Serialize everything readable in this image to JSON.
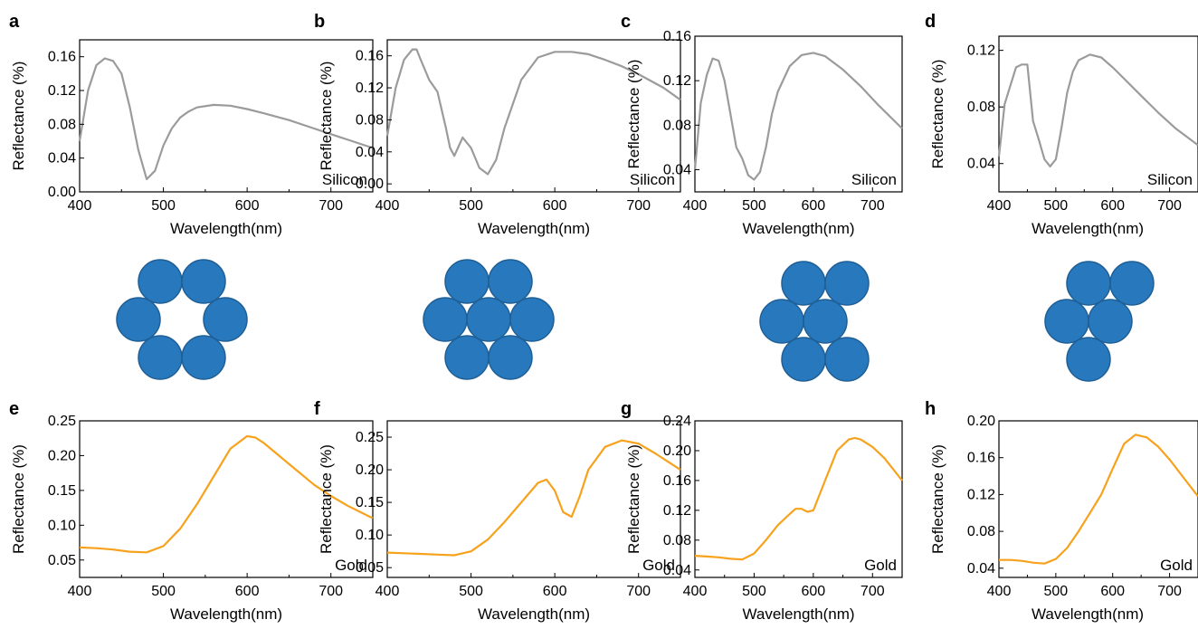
{
  "chart_data": [
    {
      "panel": "a",
      "type": "line",
      "xlabel": "Wavelength(nm)",
      "ylabel": "Reflectance (%)",
      "xlim": [
        400,
        750
      ],
      "ylim": [
        0,
        0.18
      ],
      "yticks": [
        0,
        0.04,
        0.08,
        0.12,
        0.16
      ],
      "ytick_labels": [
        "0.00",
        "0.04",
        "0.08",
        "0.12",
        "0.16"
      ],
      "xticks": [
        400,
        500,
        600,
        700
      ],
      "annotation": "Silicon",
      "color": "#9b9b9b",
      "x": [
        400,
        410,
        420,
        430,
        440,
        450,
        460,
        470,
        480,
        490,
        500,
        510,
        520,
        530,
        540,
        560,
        580,
        600,
        620,
        650,
        680,
        710,
        750
      ],
      "y": [
        0.06,
        0.12,
        0.15,
        0.158,
        0.155,
        0.14,
        0.1,
        0.05,
        0.015,
        0.025,
        0.055,
        0.075,
        0.088,
        0.095,
        0.1,
        0.103,
        0.102,
        0.098,
        0.093,
        0.085,
        0.075,
        0.065,
        0.052
      ]
    },
    {
      "panel": "b",
      "type": "line",
      "xlabel": "Wavelength(nm)",
      "ylabel": "Reflectance (%)",
      "xlim": [
        400,
        750
      ],
      "ylim": [
        -0.01,
        0.18
      ],
      "yticks": [
        0,
        0.04,
        0.08,
        0.12,
        0.16
      ],
      "ytick_labels": [
        "0.00",
        "0.04",
        "0.08",
        "0.12",
        "0.16"
      ],
      "xticks": [
        400,
        500,
        600,
        700
      ],
      "annotation": "Silicon",
      "color": "#9b9b9b",
      "x": [
        400,
        410,
        420,
        430,
        435,
        440,
        450,
        460,
        470,
        475,
        480,
        490,
        500,
        510,
        520,
        530,
        540,
        560,
        580,
        600,
        620,
        640,
        660,
        680,
        700,
        730,
        750
      ],
      "y": [
        0.06,
        0.12,
        0.155,
        0.168,
        0.168,
        0.155,
        0.13,
        0.115,
        0.07,
        0.045,
        0.035,
        0.058,
        0.045,
        0.02,
        0.012,
        0.03,
        0.07,
        0.13,
        0.158,
        0.165,
        0.165,
        0.162,
        0.155,
        0.147,
        0.137,
        0.12,
        0.105
      ]
    },
    {
      "panel": "c",
      "type": "line",
      "xlabel": "Wavelength(nm)",
      "ylabel": "Reflectance (%)",
      "xlim": [
        400,
        750
      ],
      "ylim": [
        0.02,
        0.16
      ],
      "yticks": [
        0.04,
        0.08,
        0.12,
        0.16
      ],
      "ytick_labels": [
        "0.04",
        "0.08",
        "0.12",
        "0.16"
      ],
      "xticks": [
        400,
        500,
        600,
        700
      ],
      "annotation": "Silicon",
      "color": "#9b9b9b",
      "x": [
        400,
        410,
        420,
        430,
        440,
        450,
        460,
        470,
        480,
        490,
        500,
        510,
        520,
        530,
        540,
        560,
        580,
        600,
        620,
        650,
        680,
        710,
        750
      ],
      "y": [
        0.04,
        0.1,
        0.125,
        0.14,
        0.138,
        0.12,
        0.09,
        0.06,
        0.05,
        0.035,
        0.031,
        0.038,
        0.06,
        0.09,
        0.11,
        0.133,
        0.143,
        0.145,
        0.142,
        0.13,
        0.115,
        0.098,
        0.077
      ]
    },
    {
      "panel": "d",
      "type": "line",
      "xlabel": "Wavelength(nm)",
      "ylabel": "Reflectance (%)",
      "xlim": [
        400,
        750
      ],
      "ylim": [
        0.02,
        0.13
      ],
      "yticks": [
        0.04,
        0.08,
        0.12
      ],
      "ytick_labels": [
        "0.04",
        "0.08",
        "0.12"
      ],
      "xticks": [
        400,
        500,
        600,
        700
      ],
      "annotation": "Silicon",
      "color": "#9b9b9b",
      "x": [
        400,
        410,
        420,
        430,
        440,
        450,
        460,
        470,
        480,
        490,
        500,
        510,
        520,
        530,
        540,
        560,
        580,
        600,
        620,
        650,
        680,
        710,
        750
      ],
      "y": [
        0.045,
        0.082,
        0.095,
        0.108,
        0.11,
        0.11,
        0.07,
        0.057,
        0.043,
        0.038,
        0.043,
        0.065,
        0.09,
        0.105,
        0.113,
        0.117,
        0.115,
        0.108,
        0.1,
        0.088,
        0.076,
        0.065,
        0.053
      ]
    },
    {
      "panel": "e",
      "type": "line",
      "xlabel": "Wavelength(nm)",
      "ylabel": "Reflectance (%)",
      "xlim": [
        400,
        750
      ],
      "ylim": [
        0.025,
        0.25
      ],
      "yticks": [
        0.05,
        0.1,
        0.15,
        0.2,
        0.25
      ],
      "ytick_labels": [
        "0.05",
        "0.10",
        "0.15",
        "0.20",
        "0.25"
      ],
      "xticks": [
        400,
        500,
        600,
        700
      ],
      "annotation": "Gold",
      "color": "#f7a21d",
      "x": [
        400,
        420,
        440,
        460,
        480,
        500,
        520,
        540,
        560,
        580,
        600,
        610,
        620,
        640,
        660,
        680,
        700,
        720,
        750
      ],
      "y": [
        0.068,
        0.067,
        0.065,
        0.062,
        0.061,
        0.07,
        0.095,
        0.13,
        0.17,
        0.21,
        0.228,
        0.226,
        0.218,
        0.198,
        0.178,
        0.158,
        0.142,
        0.128,
        0.11
      ]
    },
    {
      "panel": "f",
      "type": "line",
      "xlabel": "Wavelength(nm)",
      "ylabel": "Reflectance (%)",
      "xlim": [
        400,
        750
      ],
      "ylim": [
        0.035,
        0.275
      ],
      "yticks": [
        0.05,
        0.1,
        0.15,
        0.2,
        0.25
      ],
      "ytick_labels": [
        "0.05",
        "0.10",
        "0.15",
        "0.20",
        "0.25"
      ],
      "xticks": [
        400,
        500,
        600,
        700
      ],
      "annotation": "Gold",
      "color": "#f7a21d",
      "x": [
        400,
        420,
        440,
        460,
        480,
        500,
        520,
        540,
        560,
        580,
        590,
        600,
        610,
        620,
        630,
        640,
        660,
        680,
        700,
        720,
        750
      ],
      "y": [
        0.073,
        0.072,
        0.071,
        0.07,
        0.069,
        0.075,
        0.093,
        0.12,
        0.15,
        0.18,
        0.185,
        0.168,
        0.135,
        0.128,
        0.16,
        0.2,
        0.235,
        0.245,
        0.24,
        0.225,
        0.2
      ]
    },
    {
      "panel": "g",
      "type": "line",
      "xlabel": "Wavelength(nm)",
      "ylabel": "Reflectance (%)",
      "xlim": [
        400,
        750
      ],
      "ylim": [
        0.03,
        0.24
      ],
      "yticks": [
        0.04,
        0.08,
        0.12,
        0.16,
        0.2,
        0.24
      ],
      "ytick_labels": [
        "0.04",
        "0.08",
        "0.12",
        "0.16",
        "0.20",
        "0.24"
      ],
      "xticks": [
        400,
        500,
        600,
        700
      ],
      "annotation": "Gold",
      "color": "#f7a21d",
      "x": [
        400,
        420,
        440,
        460,
        480,
        500,
        520,
        540,
        560,
        570,
        580,
        590,
        600,
        620,
        640,
        660,
        670,
        680,
        700,
        720,
        750
      ],
      "y": [
        0.059,
        0.058,
        0.057,
        0.055,
        0.054,
        0.062,
        0.08,
        0.1,
        0.115,
        0.122,
        0.122,
        0.118,
        0.12,
        0.16,
        0.2,
        0.215,
        0.217,
        0.215,
        0.205,
        0.19,
        0.16
      ]
    },
    {
      "panel": "h",
      "type": "line",
      "xlabel": "Wavelength(nm)",
      "ylabel": "Reflectance (%)",
      "xlim": [
        400,
        750
      ],
      "ylim": [
        0.03,
        0.2
      ],
      "yticks": [
        0.04,
        0.08,
        0.12,
        0.16,
        0.2
      ],
      "ytick_labels": [
        "0.04",
        "0.08",
        "0.12",
        "0.16",
        "0.20"
      ],
      "xticks": [
        400,
        500,
        600,
        700
      ],
      "annotation": "Gold",
      "color": "#f7a21d",
      "x": [
        400,
        420,
        440,
        460,
        480,
        500,
        520,
        540,
        560,
        580,
        600,
        620,
        640,
        660,
        680,
        700,
        720,
        750
      ],
      "y": [
        0.049,
        0.049,
        0.048,
        0.046,
        0.045,
        0.05,
        0.062,
        0.08,
        0.1,
        0.12,
        0.148,
        0.175,
        0.185,
        0.182,
        0.172,
        0.158,
        0.142,
        0.118
      ]
    }
  ],
  "diagrams": [
    {
      "panel": "a",
      "arrangement": "hexagonal-ring",
      "particles": 6,
      "color": "#2878be",
      "edge": "#1f5f95"
    },
    {
      "panel": "b",
      "arrangement": "heptamer",
      "particles": 7,
      "color": "#2878be",
      "edge": "#1f5f95"
    },
    {
      "panel": "c",
      "arrangement": "hexagonal-missing-left-pair",
      "particles": 5,
      "color": "#2878be",
      "edge": "#1f5f95"
    },
    {
      "panel": "d",
      "arrangement": "tetramer-cluster",
      "particles": 4,
      "color": "#2878be",
      "edge": "#1f5f95"
    }
  ]
}
